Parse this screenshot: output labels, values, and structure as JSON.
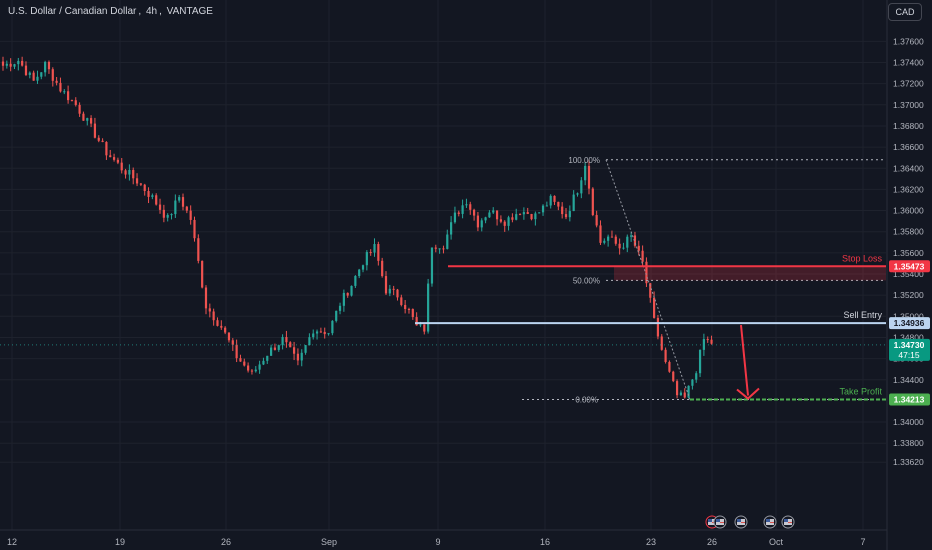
{
  "header": {
    "symbol": "U.S. Dollar / Canadian Dollar",
    "interval": "4h",
    "broker": "VANTAGE",
    "currency_button": "CAD"
  },
  "colors": {
    "background": "#131722",
    "grid": "#1e222d",
    "up": "#26a69a",
    "down": "#ef5350",
    "stop_loss": "#f23645",
    "sell_entry": "#bcd5f0",
    "take_profit": "#4caf50",
    "fib": "#b2b5be"
  },
  "chart_data": {
    "type": "candlestick",
    "ylim": [
      1.3353,
      1.3776
    ],
    "y_ticks": [
      "1.37600",
      "1.37400",
      "1.37200",
      "1.37000",
      "1.36800",
      "1.36600",
      "1.36400",
      "1.36200",
      "1.36000",
      "1.35800",
      "1.35600",
      "1.35400",
      "1.35200",
      "1.35000",
      "1.34800",
      "1.34600",
      "1.34400",
      "1.34000",
      "1.33800",
      "1.33620"
    ],
    "x_ticks": [
      "12",
      "19",
      "26",
      "Sep",
      "9",
      "16",
      "23",
      "26",
      "Oct",
      "7"
    ],
    "annotations": {
      "stop_loss": {
        "label": "Stop Loss",
        "price": "1.35473",
        "value": 1.35473
      },
      "sell_entry": {
        "label": "Sell Entry",
        "price": "1.34936",
        "value": 1.34936
      },
      "take_profit": {
        "label": "Take Profit",
        "price": "1.34213",
        "value": 1.34213
      },
      "current_price": {
        "price": "1.34730",
        "countdown": "47:15",
        "value": 1.3473
      },
      "fib_levels": [
        {
          "label": "100.00%",
          "value": 1.3648
        },
        {
          "label": "50.00%",
          "value": 1.3534
        },
        {
          "label": "0.00%",
          "value": 1.34213
        }
      ]
    },
    "anchors": [
      [
        0,
        1.3737
      ],
      [
        4,
        1.3742
      ],
      [
        8,
        1.3722
      ],
      [
        11,
        1.3738
      ],
      [
        15,
        1.3715
      ],
      [
        19,
        1.37
      ],
      [
        23,
        1.3678
      ],
      [
        27,
        1.3655
      ],
      [
        31,
        1.364
      ],
      [
        35,
        1.3628
      ],
      [
        39,
        1.3612
      ],
      [
        43,
        1.3592
      ],
      [
        46,
        1.3613
      ],
      [
        49,
        1.3592
      ],
      [
        53,
        1.351
      ],
      [
        57,
        1.349
      ],
      [
        61,
        1.3462
      ],
      [
        65,
        1.3445
      ],
      [
        69,
        1.3465
      ],
      [
        73,
        1.3478
      ],
      [
        77,
        1.3455
      ],
      [
        81,
        1.3488
      ],
      [
        85,
        1.3485
      ],
      [
        88,
        1.3512
      ],
      [
        91,
        1.353
      ],
      [
        94,
        1.3552
      ],
      [
        97,
        1.3565
      ],
      [
        100,
        1.3525
      ],
      [
        103,
        1.352
      ],
      [
        106,
        1.3505
      ],
      [
        108,
        1.349
      ],
      [
        110,
        1.3488
      ],
      [
        112,
        1.3568
      ],
      [
        115,
        1.3568
      ],
      [
        118,
        1.3595
      ],
      [
        121,
        1.361
      ],
      [
        124,
        1.3588
      ],
      [
        127,
        1.36
      ],
      [
        131,
        1.359
      ],
      [
        135,
        1.36
      ],
      [
        139,
        1.3595
      ],
      [
        143,
        1.361
      ],
      [
        147,
        1.3595
      ],
      [
        150,
        1.362
      ],
      [
        152,
        1.3645
      ],
      [
        154,
        1.36
      ],
      [
        156,
        1.357
      ],
      [
        158,
        1.3575
      ],
      [
        161,
        1.3565
      ],
      [
        164,
        1.3575
      ],
      [
        167,
        1.355
      ],
      [
        170,
        1.3495
      ],
      [
        173,
        1.3455
      ],
      [
        176,
        1.3425
      ],
      [
        178,
        1.3422
      ],
      [
        181,
        1.345
      ],
      [
        183,
        1.3478
      ],
      [
        185,
        1.3475
      ]
    ]
  }
}
